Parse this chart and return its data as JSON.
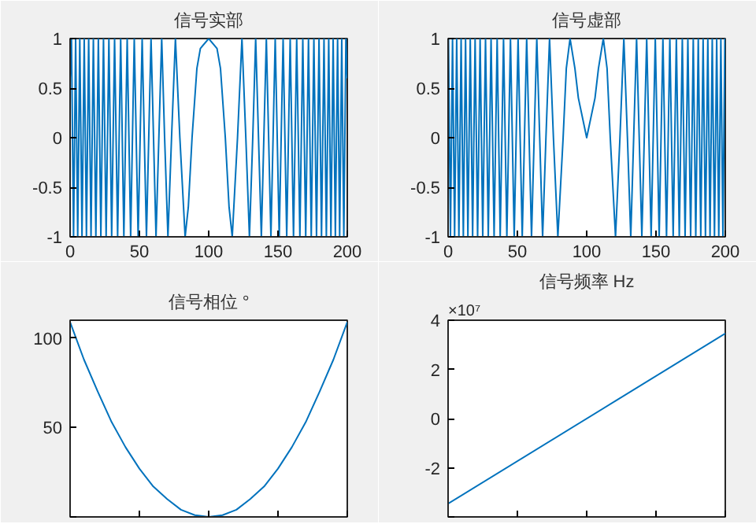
{
  "chart_data": [
    {
      "type": "line",
      "title": "信号实部",
      "x": [
        0,
        1.0,
        2.5,
        4.0,
        5.5,
        7.0,
        8.6,
        10.2,
        11.8,
        13.4,
        15.1,
        16.8,
        18.6,
        20.4,
        22.2,
        24.1,
        26.0,
        28.0,
        30.0,
        32.1,
        34.3,
        36.5,
        38.8,
        41.2,
        43.7,
        46.3,
        49.1,
        52.0,
        55.1,
        58.4,
        62.0,
        66.1,
        68.2,
        70.6,
        73.2,
        76.0,
        79.2,
        83.0,
        85.3,
        88.0,
        91.5,
        94.0,
        100,
        106.0,
        108.5,
        112.0,
        114.7,
        117.0,
        120.8,
        124.0,
        126.8,
        129.4,
        131.8,
        133.9,
        138.0,
        141.6,
        144.9,
        148.0,
        150.9,
        153.7,
        156.3,
        158.8,
        161.2,
        163.5,
        165.8,
        167.9,
        170.0,
        172.0,
        174.0,
        175.9,
        177.8,
        179.6,
        181.4,
        183.2,
        184.9,
        186.6,
        188.2,
        189.8,
        191.4,
        193.0,
        194.5,
        196.0,
        197.5,
        199.0,
        200
      ],
      "series": [
        {
          "color": "#0072bd",
          "values": [
            0.6,
            1,
            -1,
            1,
            -1,
            1,
            -1,
            1,
            -1,
            1,
            -1,
            1,
            -1,
            1,
            -1,
            1,
            -1,
            1,
            -1,
            1,
            -1,
            1,
            -1,
            1,
            -1,
            1,
            -1,
            1,
            -1,
            1,
            -1,
            1,
            0,
            -1,
            0,
            1,
            0,
            -1,
            -0.7,
            0,
            0.7,
            0.9,
            1,
            0.9,
            0.7,
            0,
            -0.7,
            -1,
            0,
            1,
            0,
            -1,
            0,
            1,
            -1,
            1,
            -1,
            1,
            -1,
            1,
            -1,
            1,
            -1,
            1,
            -1,
            1,
            -1,
            1,
            -1,
            1,
            -1,
            1,
            -1,
            1,
            -1,
            1,
            -1,
            1,
            -1,
            1,
            -1,
            1,
            -1,
            1,
            0.6
          ]
        }
      ],
      "xlim": [
        0,
        200
      ],
      "xticks": [
        0,
        50,
        100,
        150,
        200
      ],
      "ylim": [
        -1,
        1
      ],
      "yticks": [
        -1,
        -0.5,
        0,
        0.5,
        1
      ],
      "grid": false
    },
    {
      "type": "line",
      "title": "信号虚部",
      "x": [
        0,
        0.3,
        1.7,
        3.2,
        4.7,
        6.2,
        7.8,
        9.4,
        11.0,
        12.6,
        14.3,
        16.0,
        17.7,
        19.5,
        21.3,
        23.1,
        25.0,
        27.0,
        29.0,
        31.0,
        33.2,
        35.4,
        37.6,
        40.0,
        42.4,
        45.0,
        47.7,
        50.5,
        53.5,
        56.7,
        60.2,
        64.0,
        66.1,
        68.2,
        70.6,
        73.2,
        76.0,
        79.2,
        83.0,
        85.3,
        88.0,
        91.5,
        94.0,
        100,
        106.0,
        108.5,
        112.0,
        114.7,
        117.0,
        120.8,
        124.0,
        126.8,
        129.4,
        131.8,
        133.9,
        136.0,
        139.8,
        143.3,
        146.5,
        149.5,
        152.3,
        155.0,
        157.6,
        160.0,
        162.4,
        164.7,
        166.8,
        169.0,
        171.0,
        173.0,
        175.0,
        176.9,
        178.7,
        180.5,
        182.3,
        184.0,
        185.7,
        187.4,
        189.0,
        190.6,
        192.2,
        193.8,
        195.3,
        196.8,
        198.3,
        199.7,
        200
      ],
      "series": [
        {
          "color": "#0072bd",
          "values": [
            0.8,
            1,
            -1,
            1,
            -1,
            1,
            -1,
            1,
            -1,
            1,
            -1,
            1,
            -1,
            1,
            -1,
            1,
            -1,
            1,
            -1,
            1,
            -1,
            1,
            -1,
            1,
            -1,
            1,
            -1,
            1,
            -1,
            1,
            -1,
            1,
            0,
            -1,
            0,
            1,
            0,
            -1,
            0,
            0.7,
            1,
            0.7,
            0.4,
            0,
            0.4,
            0.7,
            1,
            0.7,
            0,
            -1,
            0,
            1,
            0,
            -1,
            0,
            1,
            -1,
            1,
            -1,
            1,
            -1,
            1,
            -1,
            1,
            -1,
            1,
            -1,
            1,
            -1,
            1,
            -1,
            1,
            -1,
            1,
            -1,
            1,
            -1,
            1,
            -1,
            1,
            -1,
            1,
            -1,
            1,
            -1,
            1,
            0.8
          ]
        }
      ],
      "xlim": [
        0,
        200
      ],
      "xticks": [
        0,
        50,
        100,
        150,
        200
      ],
      "ylim": [
        -1,
        1
      ],
      "yticks": [
        -1,
        -0.5,
        0,
        0.5,
        1
      ],
      "grid": false
    },
    {
      "type": "line",
      "title": "信号相位 °",
      "x": [
        0,
        10,
        20,
        30,
        40,
        50,
        60,
        70,
        80,
        90,
        100,
        110,
        120,
        130,
        140,
        150,
        160,
        170,
        180,
        190,
        200
      ],
      "series": [
        {
          "color": "#0072bd",
          "values": [
            109,
            88,
            70,
            53,
            39,
            27,
            17,
            10,
            4,
            1,
            0,
            1,
            4,
            10,
            17,
            27,
            39,
            53,
            70,
            88,
            109
          ]
        }
      ],
      "xlim": [
        0,
        200
      ],
      "xticks": [
        {
          "value": 0,
          "label": null
        },
        {
          "value": 50,
          "label": null
        },
        {
          "value": 100,
          "label": null
        },
        {
          "value": 150,
          "label": null
        },
        {
          "value": 200,
          "label": null
        }
      ],
      "ylim": [
        0,
        110
      ],
      "yticks": [
        {
          "value": 0,
          "label": null
        },
        50,
        100
      ],
      "tick_labels": "y",
      "grid": false
    },
    {
      "type": "line",
      "title": "信号频率 Hz",
      "annotations": [
        "×10⁷"
      ],
      "x": [
        0,
        200
      ],
      "series": [
        {
          "color": "#0072bd",
          "values": [
            -3.46,
            3.46
          ]
        }
      ],
      "xlim": [
        0,
        200
      ],
      "xticks": [
        {
          "value": 0,
          "label": null
        },
        {
          "value": 50,
          "label": null
        },
        {
          "value": 100,
          "label": null
        },
        {
          "value": 150,
          "label": null
        },
        {
          "value": 200,
          "label": null
        }
      ],
      "ylim": [
        -4,
        4
      ],
      "yticks": [
        {
          "value": -4,
          "label": null
        },
        -2,
        0,
        2,
        4
      ],
      "tick_labels": "y",
      "grid": false
    }
  ]
}
